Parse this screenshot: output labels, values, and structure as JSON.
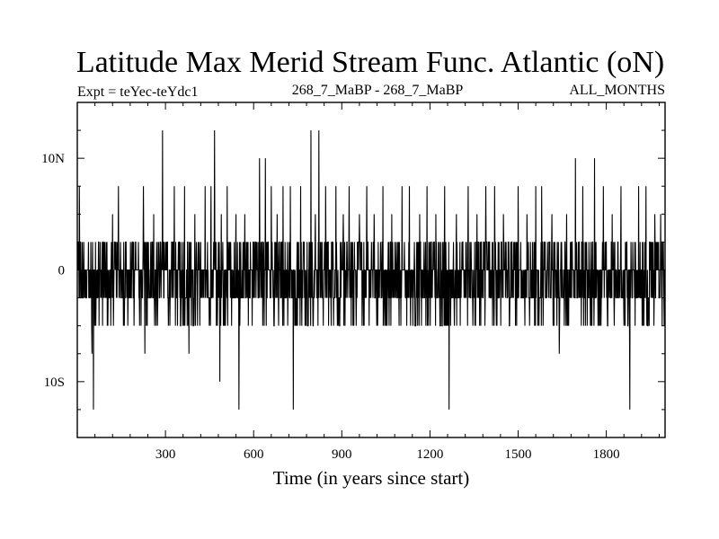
{
  "chart_data": {
    "type": "line",
    "title": "Latitude Max Merid Stream Func. Atlantic (oN)",
    "experiment_label": "Expt = teYec-teYdc1",
    "period_label": "268_7_MaBP - 268_7_MaBP",
    "season_label": "ALL_MONTHS",
    "xlabel": "Time (in years since start)",
    "ylabel": "",
    "xlim": [
      0,
      2000
    ],
    "ylim": [
      -15,
      15
    ],
    "x_ticks": [
      300,
      600,
      900,
      1200,
      1500,
      1800
    ],
    "x_tick_labels": [
      "300",
      "600",
      "900",
      "1200",
      "1500",
      "1800"
    ],
    "y_ticks": [
      10,
      0,
      -10
    ],
    "y_tick_labels": [
      "10N",
      "0",
      "10S"
    ],
    "levels": [
      -12.5,
      -10,
      -7.5,
      -5,
      -2.5,
      0,
      2.5,
      5,
      7.5,
      10,
      12.5
    ],
    "typical_range": [
      -5,
      2.5
    ],
    "high_spikes": [
      {
        "x": 7,
        "y": 7.5
      },
      {
        "x": 120,
        "y": 5
      },
      {
        "x": 140,
        "y": 7.5
      },
      {
        "x": 225,
        "y": 7.5
      },
      {
        "x": 260,
        "y": 5
      },
      {
        "x": 290,
        "y": 12.5
      },
      {
        "x": 330,
        "y": 7.5
      },
      {
        "x": 365,
        "y": 7.5
      },
      {
        "x": 400,
        "y": 5
      },
      {
        "x": 435,
        "y": 7.5
      },
      {
        "x": 455,
        "y": 7.5
      },
      {
        "x": 467,
        "y": 12.5
      },
      {
        "x": 490,
        "y": 5
      },
      {
        "x": 510,
        "y": 7.5
      },
      {
        "x": 540,
        "y": 5
      },
      {
        "x": 570,
        "y": 5
      },
      {
        "x": 620,
        "y": 10
      },
      {
        "x": 640,
        "y": 10
      },
      {
        "x": 660,
        "y": 7.5
      },
      {
        "x": 680,
        "y": 5
      },
      {
        "x": 700,
        "y": 7.5
      },
      {
        "x": 725,
        "y": 7.5
      },
      {
        "x": 760,
        "y": 7.5
      },
      {
        "x": 795,
        "y": 12.5
      },
      {
        "x": 810,
        "y": 5
      },
      {
        "x": 822,
        "y": 12.5
      },
      {
        "x": 845,
        "y": 7.5
      },
      {
        "x": 880,
        "y": 7.5
      },
      {
        "x": 905,
        "y": 5
      },
      {
        "x": 925,
        "y": 7.5
      },
      {
        "x": 960,
        "y": 5
      },
      {
        "x": 985,
        "y": 7.5
      },
      {
        "x": 1010,
        "y": 5
      },
      {
        "x": 1040,
        "y": 7.5
      },
      {
        "x": 1070,
        "y": 5
      },
      {
        "x": 1105,
        "y": 7.5
      },
      {
        "x": 1130,
        "y": 7.5
      },
      {
        "x": 1165,
        "y": 5
      },
      {
        "x": 1190,
        "y": 7.5
      },
      {
        "x": 1220,
        "y": 5
      },
      {
        "x": 1250,
        "y": 7.5
      },
      {
        "x": 1265,
        "y": 7.5
      },
      {
        "x": 1290,
        "y": 5
      },
      {
        "x": 1330,
        "y": 7.5
      },
      {
        "x": 1360,
        "y": 5
      },
      {
        "x": 1390,
        "y": 7.5
      },
      {
        "x": 1420,
        "y": 7.5
      },
      {
        "x": 1450,
        "y": 5
      },
      {
        "x": 1500,
        "y": 7.5
      },
      {
        "x": 1530,
        "y": 5
      },
      {
        "x": 1560,
        "y": 7.5
      },
      {
        "x": 1580,
        "y": 7.5
      },
      {
        "x": 1615,
        "y": 5
      },
      {
        "x": 1640,
        "y": 7.5
      },
      {
        "x": 1665,
        "y": 5
      },
      {
        "x": 1695,
        "y": 10
      },
      {
        "x": 1720,
        "y": 7.5
      },
      {
        "x": 1760,
        "y": 10
      },
      {
        "x": 1790,
        "y": 7.5
      },
      {
        "x": 1820,
        "y": 5
      },
      {
        "x": 1850,
        "y": 7.5
      },
      {
        "x": 1880,
        "y": 5
      },
      {
        "x": 1910,
        "y": 7.5
      },
      {
        "x": 1935,
        "y": 7.5
      },
      {
        "x": 1965,
        "y": 5
      },
      {
        "x": 1985,
        "y": 5
      }
    ],
    "low_spikes": [
      {
        "x": 55,
        "y": -12.5
      },
      {
        "x": 50,
        "y": -7.5
      },
      {
        "x": 230,
        "y": -7.5
      },
      {
        "x": 380,
        "y": -7.5
      },
      {
        "x": 485,
        "y": -10
      },
      {
        "x": 550,
        "y": -12.5
      },
      {
        "x": 735,
        "y": -12.5
      },
      {
        "x": 1265,
        "y": -12.5
      },
      {
        "x": 1640,
        "y": -7.5
      },
      {
        "x": 1880,
        "y": -12.5
      }
    ]
  }
}
